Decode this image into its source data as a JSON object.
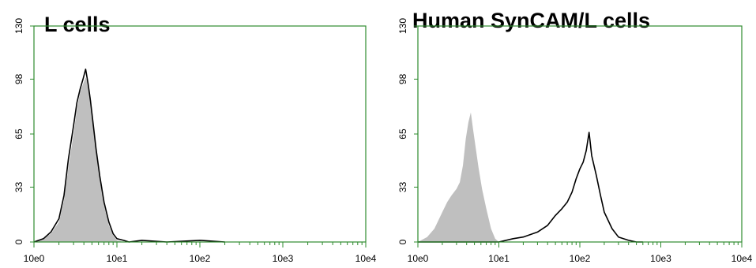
{
  "chart_data": [
    {
      "type": "area",
      "title": "L cells",
      "xlabel": "",
      "ylabel": "",
      "x_scale": "log",
      "xlim": [
        1,
        10000
      ],
      "ylim": [
        0,
        130
      ],
      "x_tick_labels": [
        "10e0",
        "10e1",
        "10e2",
        "10e3",
        "10e4"
      ],
      "y_tick_labels": [
        "0",
        "33",
        "65",
        "98",
        "130"
      ],
      "y_ticks": [
        0,
        33,
        65,
        98,
        130
      ],
      "axis_color": "#2e8b2e",
      "grid": false,
      "legend": "none",
      "series": [
        {
          "style": "filled",
          "color": "#bfbfbf",
          "x": [
            1,
            1.3,
            1.6,
            2,
            2.3,
            2.6,
            3,
            3.3,
            3.6,
            3.9,
            4.2,
            4.5,
            4.8,
            5.2,
            5.6,
            6.2,
            7,
            8,
            9,
            10,
            12,
            14
          ],
          "y": [
            0,
            2,
            5,
            12,
            25,
            45,
            65,
            80,
            90,
            95,
            99,
            96,
            88,
            72,
            55,
            38,
            22,
            10,
            4,
            1,
            0,
            0
          ]
        },
        {
          "style": "line",
          "color": "#000000",
          "x": [
            1,
            1.3,
            1.6,
            2,
            2.3,
            2.6,
            3,
            3.3,
            3.6,
            3.9,
            4.2,
            4.5,
            4.8,
            5.2,
            5.6,
            6.2,
            7,
            8,
            9,
            10,
            12,
            14,
            20,
            40,
            100,
            200
          ],
          "y": [
            0,
            2,
            6,
            14,
            28,
            50,
            70,
            84,
            92,
            98,
            104,
            95,
            85,
            70,
            56,
            40,
            24,
            12,
            5,
            2,
            1,
            0,
            1,
            0,
            1,
            0
          ]
        }
      ]
    },
    {
      "type": "area",
      "title": "Human SynCAM/L cells",
      "xlabel": "",
      "ylabel": "",
      "x_scale": "log",
      "xlim": [
        1,
        10000
      ],
      "ylim": [
        0,
        130
      ],
      "x_tick_labels": [
        "10e0",
        "10e1",
        "10e2",
        "10e3",
        "10e4"
      ],
      "y_tick_labels": [
        "0",
        "33",
        "65",
        "98",
        "130"
      ],
      "y_ticks": [
        0,
        33,
        65,
        98,
        130
      ],
      "axis_color": "#2e8b2e",
      "grid": false,
      "legend": "none",
      "series": [
        {
          "style": "filled",
          "color": "#bfbfbf",
          "x": [
            1,
            1.3,
            1.6,
            2,
            2.3,
            2.6,
            3,
            3.3,
            3.6,
            3.9,
            4.2,
            4.5,
            4.8,
            5.2,
            5.6,
            6.2,
            7,
            8,
            9,
            10
          ],
          "y": [
            0,
            3,
            8,
            18,
            24,
            28,
            32,
            36,
            46,
            62,
            72,
            78,
            68,
            56,
            45,
            32,
            20,
            8,
            2,
            0
          ]
        },
        {
          "style": "line",
          "color": "#000000",
          "x": [
            1,
            10,
            15,
            20,
            30,
            40,
            50,
            60,
            70,
            80,
            90,
            100,
            110,
            120,
            130,
            140,
            160,
            180,
            200,
            250,
            300,
            400,
            500,
            600
          ],
          "y": [
            0,
            0,
            2,
            3,
            6,
            10,
            16,
            20,
            24,
            30,
            38,
            44,
            48,
            55,
            66,
            52,
            40,
            28,
            18,
            8,
            3,
            1,
            0,
            0
          ]
        }
      ]
    }
  ]
}
